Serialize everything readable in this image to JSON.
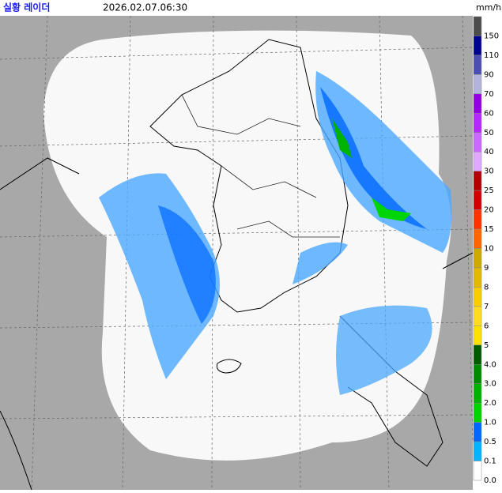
{
  "header": {
    "title": "실황 레이더",
    "timestamp": "2026.02.07.06:30",
    "unit": "mm/h"
  },
  "legend": [
    {
      "label": "150",
      "color": "#4c4c4c"
    },
    {
      "label": "110",
      "color": "#000390"
    },
    {
      "label": "90",
      "color": "#4c4eb1"
    },
    {
      "label": "70",
      "color": "#b3b4de"
    },
    {
      "label": "60",
      "color": "#9300e4"
    },
    {
      "label": "50",
      "color": "#b329ff"
    },
    {
      "label": "40",
      "color": "#c969ff"
    },
    {
      "label": "30",
      "color": "#e0a9ff"
    },
    {
      "label": "25",
      "color": "#b40000"
    },
    {
      "label": "20",
      "color": "#d20000"
    },
    {
      "label": "15",
      "color": "#ff3200"
    },
    {
      "label": "10",
      "color": "#ff6600"
    },
    {
      "label": "9",
      "color": "#ccaa00"
    },
    {
      "label": "8",
      "color": "#e0b900"
    },
    {
      "label": "7",
      "color": "#f9cd00"
    },
    {
      "label": "6",
      "color": "#ffdc1f"
    },
    {
      "label": "5",
      "color": "#ffe100"
    },
    {
      "label": "4.0",
      "color": "#005a00"
    },
    {
      "label": "3.0",
      "color": "#008c00"
    },
    {
      "label": "2.0",
      "color": "#00b300"
    },
    {
      "label": "1.0",
      "color": "#00d500"
    },
    {
      "label": "0.5",
      "color": "#0068ff"
    },
    {
      "label": "0.1",
      "color": "#00b4ff"
    },
    {
      "label": "0.0",
      "color": "#ffffff"
    }
  ]
}
